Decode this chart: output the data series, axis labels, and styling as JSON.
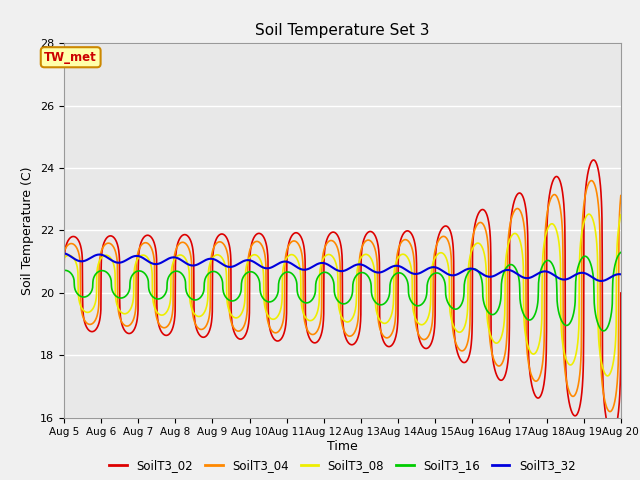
{
  "title": "Soil Temperature Set 3",
  "xlabel": "Time",
  "ylabel": "Soil Temperature (C)",
  "xlim": [
    0,
    15
  ],
  "ylim": [
    16,
    28
  ],
  "yticks": [
    16,
    18,
    20,
    22,
    24,
    26,
    28
  ],
  "xtick_labels": [
    "Aug 5",
    "Aug 6",
    "Aug 7",
    "Aug 8",
    "Aug 9",
    "Aug 10",
    "Aug 11",
    "Aug 12",
    "Aug 13",
    "Aug 14",
    "Aug 15",
    "Aug 16",
    "Aug 17",
    "Aug 18",
    "Aug 19",
    "Aug 20"
  ],
  "bg_color": "#f0f0f0",
  "plot_bg_color": "#e8e8e8",
  "series_order": [
    "SoilT3_02",
    "SoilT3_04",
    "SoilT3_08",
    "SoilT3_16",
    "SoilT3_32"
  ],
  "series": {
    "SoilT3_02": {
      "color": "#dd0000",
      "lw": 1.2
    },
    "SoilT3_04": {
      "color": "#ff8800",
      "lw": 1.2
    },
    "SoilT3_08": {
      "color": "#eeee00",
      "lw": 1.2
    },
    "SoilT3_16": {
      "color": "#00cc00",
      "lw": 1.2
    },
    "SoilT3_32": {
      "color": "#0000dd",
      "lw": 1.5
    }
  },
  "annotation": {
    "text": "TW_met",
    "color": "#cc0000",
    "bbox_fc": "#ffffaa",
    "bbox_ec": "#cc8800"
  },
  "n_days": 15,
  "pts_per_day": 144,
  "base_temp": 20.3,
  "base_trend": 0.0,
  "amp_early": 1.5,
  "amp_growth_day": 10,
  "amp_growth_rate": 0.55,
  "depth_02_amp": 1.0,
  "depth_04_amp": 0.85,
  "depth_08_amp": 0.6,
  "depth_16_amp": 0.28,
  "depth_32_amp": 0.07,
  "depth_02_phase": 0.0,
  "depth_04_phase": 0.35,
  "depth_08_phase": 0.75,
  "depth_16_phase": 1.4,
  "depth_32_phase": 2.0,
  "peak_sharpness": 4.0
}
